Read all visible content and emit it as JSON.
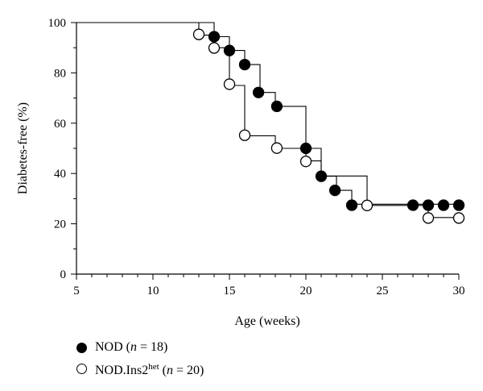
{
  "chart_data": {
    "type": "line",
    "xlabel": "Age (weeks)",
    "ylabel": "Diabetes-free (%)",
    "xlim": [
      5,
      30
    ],
    "ylim": [
      0,
      100
    ],
    "x_ticks": [
      5,
      10,
      15,
      20,
      25,
      30
    ],
    "y_ticks": [
      0,
      20,
      40,
      60,
      80,
      100
    ],
    "grid": false,
    "legend_position": "bottom-left",
    "series": [
      {
        "name": "NOD (n = 18)",
        "marker": "filled-circle",
        "color": "#000000",
        "steps": [
          [
            5,
            100
          ],
          [
            14,
            100
          ],
          [
            14,
            94.4
          ],
          [
            15,
            94.4
          ],
          [
            15,
            88.9
          ],
          [
            16,
            88.9
          ],
          [
            16,
            83.3
          ],
          [
            17,
            83.3
          ],
          [
            17,
            72.2
          ],
          [
            18,
            72.2
          ],
          [
            18,
            66.7
          ],
          [
            20,
            66.7
          ],
          [
            20,
            50
          ],
          [
            21,
            50
          ],
          [
            21,
            38.9
          ],
          [
            22,
            38.9
          ],
          [
            22,
            33.3
          ],
          [
            23,
            33.3
          ],
          [
            23,
            27.8
          ],
          [
            30,
            27.8
          ]
        ],
        "points": [
          [
            14,
            94.4
          ],
          [
            15,
            88.9
          ],
          [
            16,
            83.3
          ],
          [
            16.9,
            72.2
          ],
          [
            18.1,
            66.7
          ],
          [
            20,
            50
          ],
          [
            21,
            38.9
          ],
          [
            21.9,
            33.3
          ],
          [
            23,
            27.4
          ],
          [
            27,
            27.4
          ],
          [
            28,
            27.4
          ],
          [
            29,
            27.4
          ],
          [
            30,
            27.4
          ]
        ]
      },
      {
        "name": "NOD.Ins2het (n = 20)",
        "marker": "open-circle",
        "color": "#000000",
        "steps": [
          [
            5,
            100
          ],
          [
            13,
            100
          ],
          [
            13,
            95
          ],
          [
            14,
            95
          ],
          [
            14,
            90
          ],
          [
            15,
            90
          ],
          [
            15,
            75
          ],
          [
            16,
            75
          ],
          [
            16,
            55
          ],
          [
            18,
            55
          ],
          [
            18,
            50
          ],
          [
            20,
            50
          ],
          [
            20,
            45
          ],
          [
            21,
            45
          ],
          [
            21,
            39
          ],
          [
            24,
            39
          ],
          [
            24,
            27.3
          ],
          [
            28,
            27.3
          ],
          [
            28,
            22.5
          ],
          [
            30,
            22.5
          ]
        ],
        "points": [
          [
            13,
            95.3
          ],
          [
            14,
            89.9
          ],
          [
            15,
            75.5
          ],
          [
            16,
            55.2
          ],
          [
            18.1,
            50.1
          ],
          [
            20,
            44.8
          ],
          [
            24,
            27.3
          ],
          [
            28,
            22.3
          ],
          [
            30,
            22.3
          ]
        ]
      }
    ]
  },
  "legend": {
    "nod_name": "NOD (",
    "nod_n": "n",
    "nod_count": " = 18)",
    "ins_name": "NOD.Ins2",
    "ins_sup": "het",
    "ins_open": " (",
    "ins_n": "n",
    "ins_count": " = 20)"
  }
}
